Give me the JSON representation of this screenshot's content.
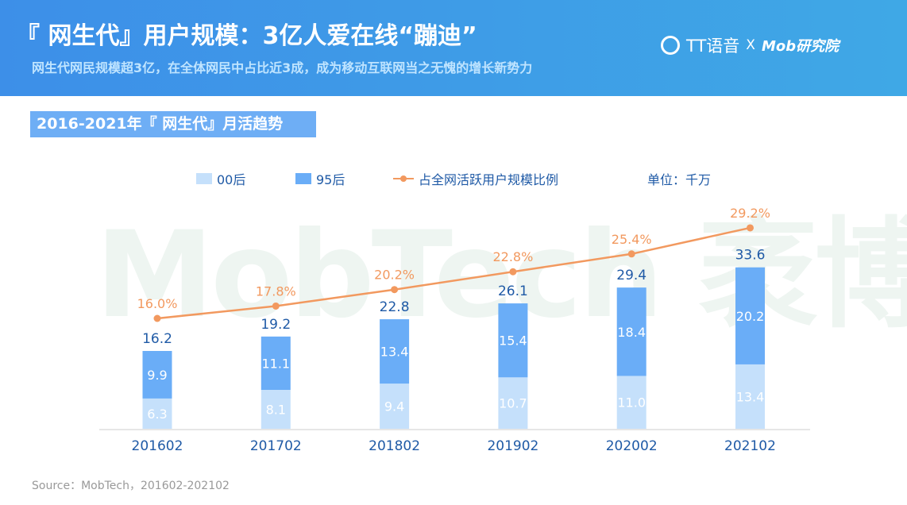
{
  "header": {
    "title": "『 网生代』用户规模：3亿人爱在线“蹦迪”",
    "subtitle": "网生代网民规模超3亿，在全体网民中占比近3成，成为移动互联网当之无愧的增长新势力",
    "logo_left": "TT语音",
    "logo_x": "X",
    "logo_right": "Mob研究院"
  },
  "section_title": "2016-2021年『 网生代』月活趋势",
  "watermark": "MobTech 袤博",
  "unit": "单位：千万",
  "source": "Source：MobTech，201602-202102",
  "colors": {
    "s00": "#c5e0fb",
    "s95": "#6aadf7",
    "line": "#f2995f",
    "total": "#1f5aa6"
  },
  "chart_data": {
    "type": "bar",
    "stacked": true,
    "categories": [
      "201602",
      "201702",
      "201802",
      "201902",
      "202002",
      "202102"
    ],
    "series": [
      {
        "name": "00后",
        "type": "bar",
        "values": [
          6.3,
          8.1,
          9.4,
          10.7,
          11.0,
          13.4
        ],
        "labels": [
          "6.3",
          "8.1",
          "9.4",
          "10.7",
          "11.0",
          "13.4"
        ]
      },
      {
        "name": "95后",
        "type": "bar",
        "values": [
          9.9,
          11.1,
          13.4,
          15.4,
          18.4,
          20.2
        ],
        "labels": [
          "9.9",
          "11.1",
          "13.4",
          "15.4",
          "18.4",
          "20.2"
        ]
      },
      {
        "name": "占全网活跃用户规模比例",
        "type": "line",
        "values": [
          16.0,
          17.8,
          20.2,
          22.8,
          25.4,
          29.2
        ],
        "labels": [
          "16.0%",
          "17.8%",
          "20.2%",
          "22.8%",
          "25.4%",
          "29.2%"
        ]
      }
    ],
    "totals": [
      16.2,
      19.2,
      22.8,
      26.1,
      29.4,
      33.6
    ],
    "total_labels": [
      "16.2",
      "19.2",
      "22.8",
      "26.1",
      "29.4",
      "33.6"
    ],
    "grid": false,
    "legend": "top"
  }
}
